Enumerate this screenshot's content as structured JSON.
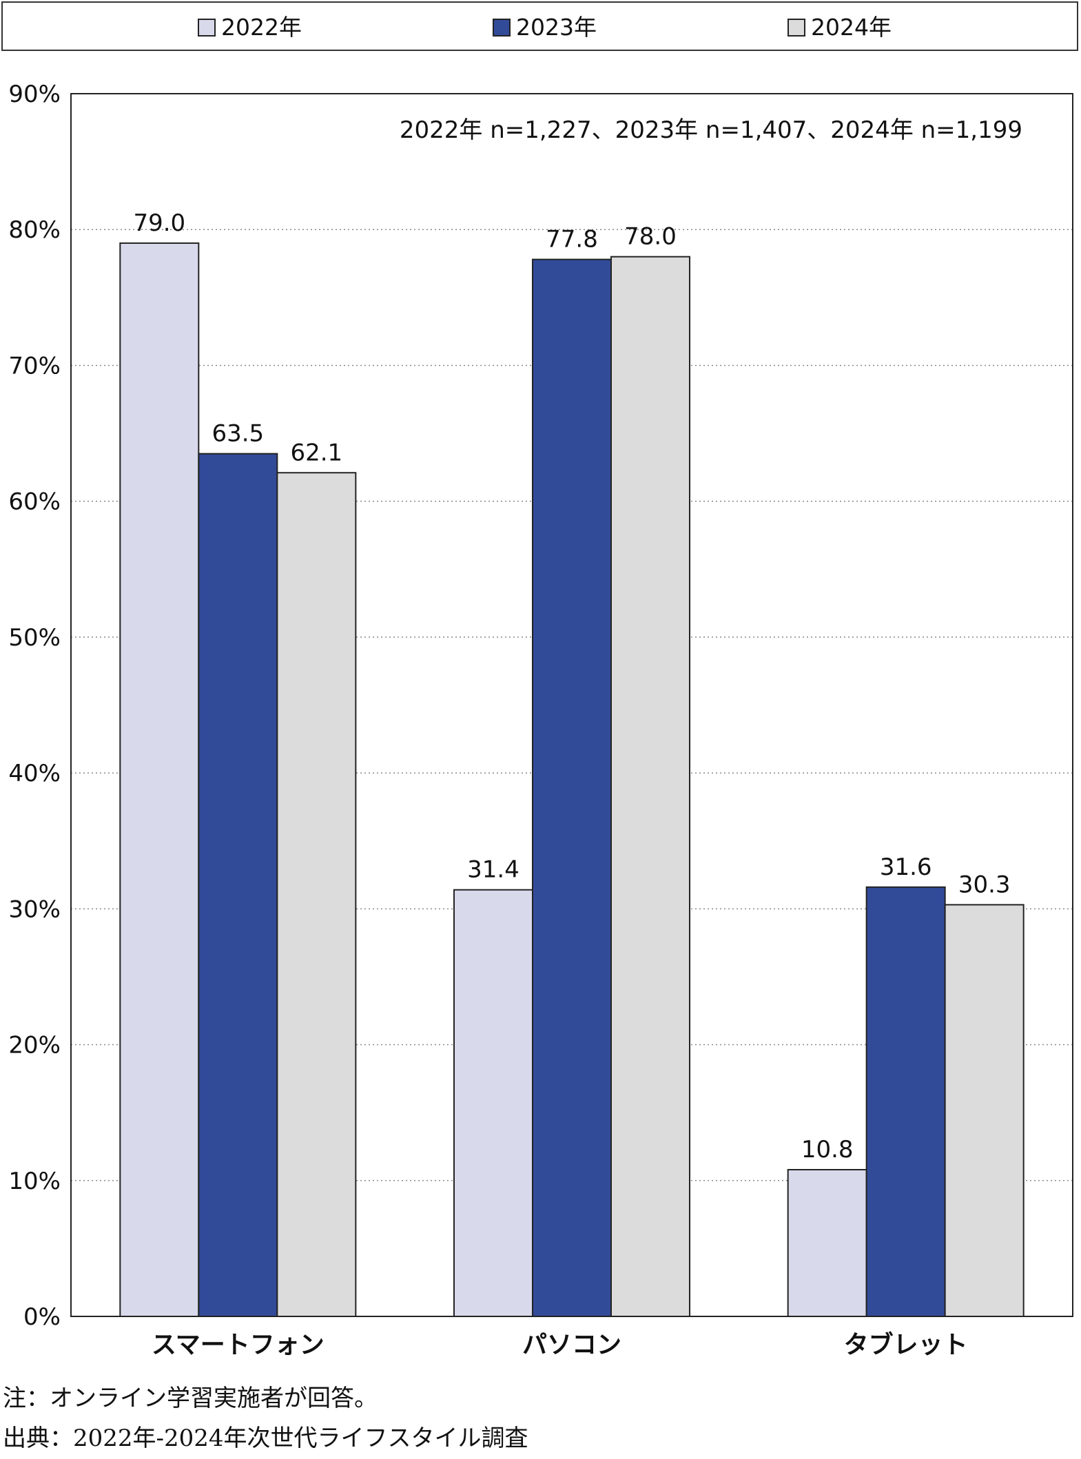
{
  "chart_data": {
    "type": "bar",
    "categories": [
      "スマートフォン",
      "パソコン",
      "タブレット"
    ],
    "series": [
      {
        "name": "2022年",
        "color": "#d8d9ea",
        "values": [
          79.0,
          31.4,
          10.8
        ],
        "labels": [
          "79.0",
          "31.4",
          "10.8"
        ]
      },
      {
        "name": "2023年",
        "color": "#324b99",
        "values": [
          63.5,
          77.8,
          31.6
        ],
        "labels": [
          "63.5",
          "77.8",
          "31.6"
        ]
      },
      {
        "name": "2024年",
        "color": "#dcdcdc",
        "values": [
          62.1,
          78.0,
          30.3
        ],
        "labels": [
          "62.1",
          "78.0",
          "30.3"
        ]
      }
    ],
    "ylim": [
      0,
      90
    ],
    "yticks": [
      "0%",
      "10%",
      "20%",
      "30%",
      "40%",
      "50%",
      "60%",
      "70%",
      "80%",
      "90%"
    ],
    "grid": true,
    "legend": "top",
    "annotation": "2022年 n=1,227、2023年 n=1,407、2024年 n=1,199"
  },
  "notes": {
    "note": "注：オンライン学習実施者が回答。",
    "source": "出典：2022年-2024年次世代ライフスタイル調査"
  }
}
